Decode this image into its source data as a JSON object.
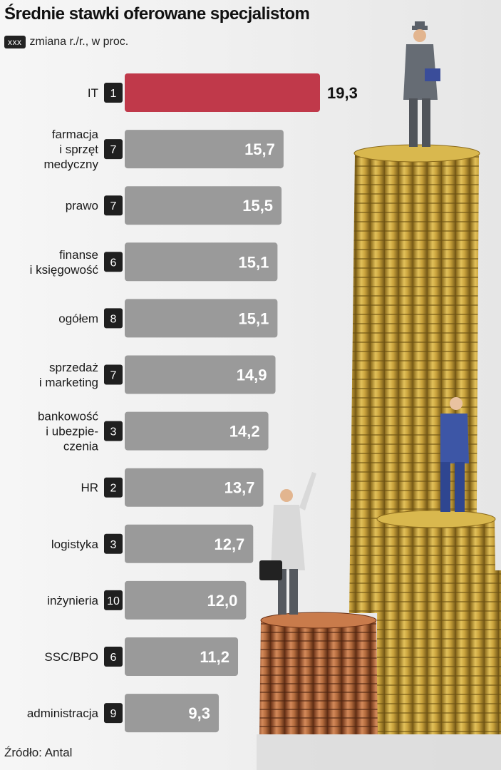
{
  "title": "Średnie stawki oferowane specjalistom",
  "legend": {
    "box_label": "xxx",
    "text": "zmiana r./r., w proc."
  },
  "source": "Źródło: Antal",
  "colors": {
    "highlight_bar": "#c0394a",
    "bar": "#9a9a9a",
    "badge": "#1f1f1f"
  },
  "chart_data": {
    "type": "bar",
    "orientation": "horizontal",
    "title": "Średnie stawki oferowane specjalistom",
    "xlabel": "",
    "ylabel": "",
    "xlim": [
      0,
      19.3
    ],
    "grid": false,
    "categories": [
      [
        "IT"
      ],
      [
        "farmacja",
        "i sprzęt",
        "medyczny"
      ],
      [
        "prawo"
      ],
      [
        "finanse",
        "i księgowość"
      ],
      [
        "ogółem"
      ],
      [
        "sprzedaż",
        "i marketing"
      ],
      [
        "bankowość",
        "i ubezpie-",
        "czenia"
      ],
      [
        "HR"
      ],
      [
        "logistyka"
      ],
      [
        "inżynieria"
      ],
      [
        "SSC/BPO"
      ],
      [
        "administracja"
      ]
    ],
    "values": [
      19.3,
      15.7,
      15.5,
      15.1,
      15.1,
      14.9,
      14.2,
      13.7,
      12.7,
      12.0,
      11.2,
      9.3
    ],
    "value_labels": [
      "19,3",
      "15,7",
      "15,5",
      "15,1",
      "15,1",
      "14,9",
      "14,2",
      "13,7",
      "12,7",
      "12,0",
      "11,2",
      "9,3"
    ],
    "ranks": [
      "1",
      "7",
      "7",
      "6",
      "8",
      "7",
      "3",
      "2",
      "3",
      "10",
      "6",
      "9"
    ]
  }
}
